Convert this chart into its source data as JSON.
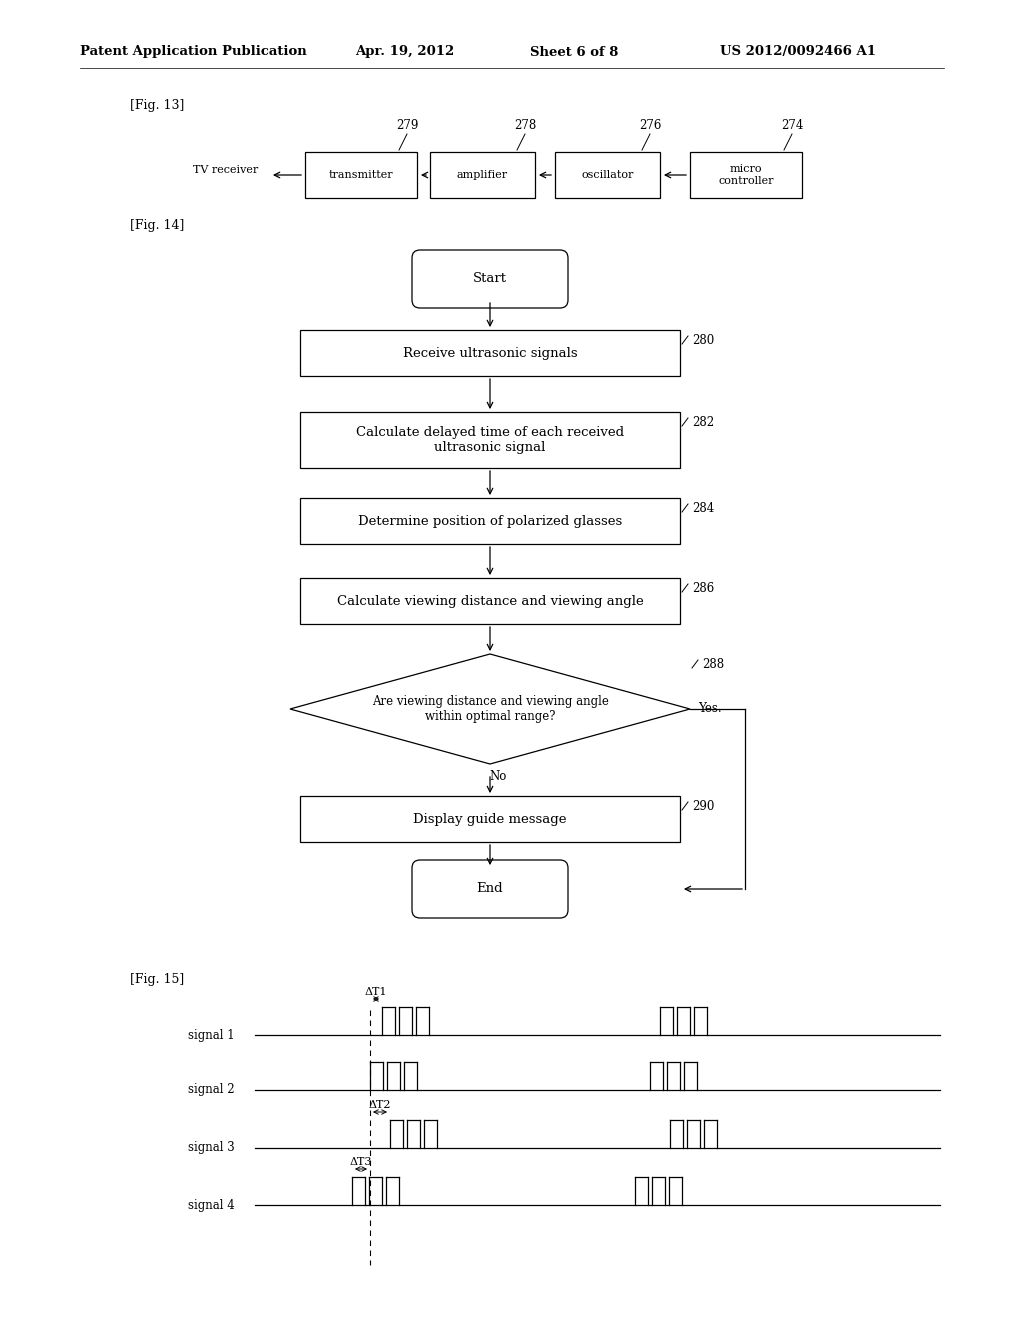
{
  "header": {
    "left": "Patent Application Publication",
    "center_date": "Apr. 19, 2012",
    "center_sheet": "Sheet 6 of 8",
    "right": "US 2012/0092466 A1"
  },
  "fig13_label": "[Fig. 13]",
  "fig14_label": "[Fig. 14]",
  "fig15_label": "[Fig. 15]",
  "fig13": {
    "tv_label": "TV receiver",
    "boxes": [
      "transmitter",
      "amplifier",
      "oscillator",
      "micro\ncontroller"
    ],
    "nums": [
      "279",
      "278",
      "276",
      "274"
    ]
  },
  "fig14": {
    "nodes": [
      {
        "type": "stadium",
        "label": "Start",
        "num": null
      },
      {
        "type": "rect",
        "label": "Receive ultrasonic signals",
        "num": "280"
      },
      {
        "type": "rect",
        "label": "Calculate delayed time of each received\nultrasonic signal",
        "num": "282"
      },
      {
        "type": "rect",
        "label": "Determine position of polarized glasses",
        "num": "284"
      },
      {
        "type": "rect",
        "label": "Calculate viewing distance and viewing angle",
        "num": "286"
      },
      {
        "type": "diamond",
        "label": "Are viewing distance and viewing angle\nwithin optimal range?",
        "num": "288"
      },
      {
        "type": "rect",
        "label": "Display guide message",
        "num": "290"
      },
      {
        "type": "stadium",
        "label": "End",
        "num": null
      }
    ]
  },
  "fig15": {
    "signals": [
      "signal 1",
      "signal 2",
      "signal 3",
      "signal 4"
    ],
    "deltas": [
      "ΔT1",
      null,
      "ΔT2",
      "ΔT3"
    ]
  },
  "bg_color": "#ffffff"
}
